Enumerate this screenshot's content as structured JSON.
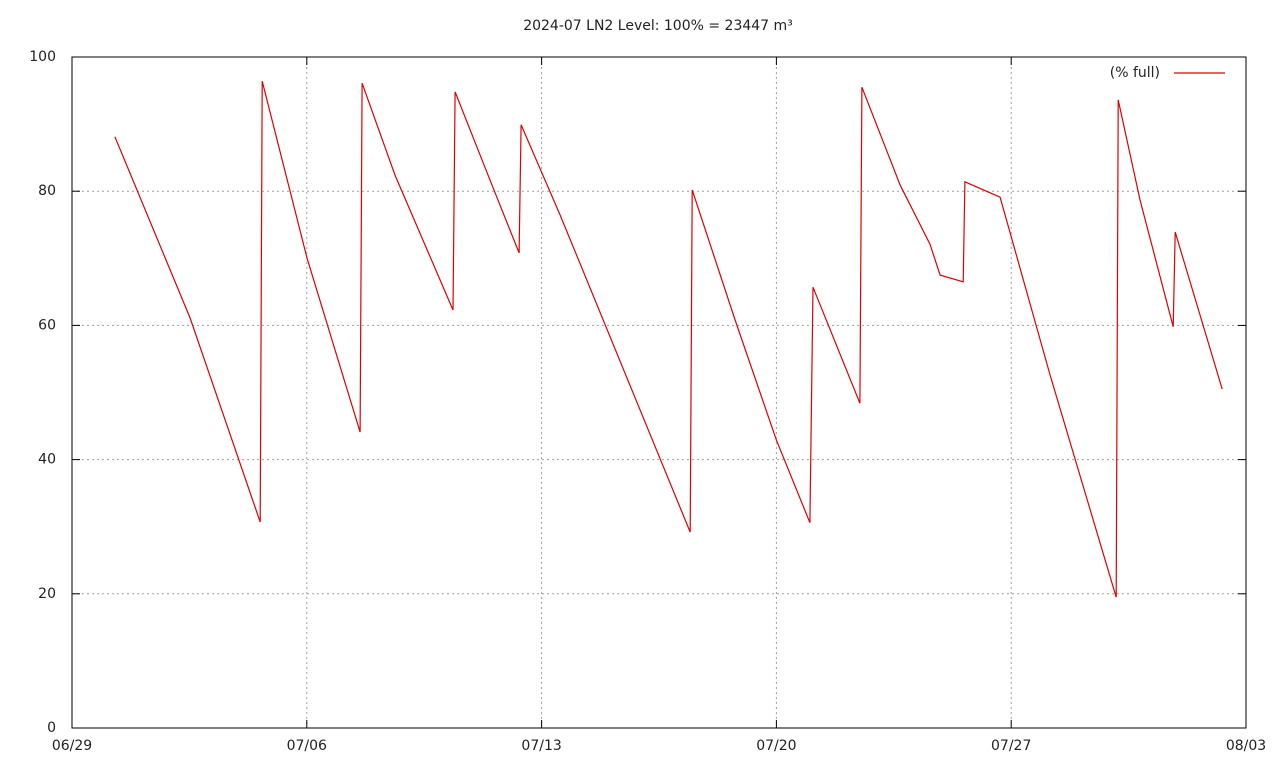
{
  "chart_data": {
    "type": "line",
    "title": "2024-07 LN2 Level: 100% = 23447 m³",
    "xlim": [
      0,
      35
    ],
    "xticks": [
      {
        "value": 0,
        "label": "06/29"
      },
      {
        "value": 7,
        "label": "07/06"
      },
      {
        "value": 14,
        "label": "07/13"
      },
      {
        "value": 21,
        "label": "07/20"
      },
      {
        "value": 28,
        "label": "07/27"
      },
      {
        "value": 35,
        "label": "08/03"
      }
    ],
    "ylim": [
      0,
      100
    ],
    "yticks": [
      0,
      20,
      40,
      60,
      80,
      100
    ],
    "grid": true,
    "legend": "top-right",
    "series": [
      {
        "name": "(% full)",
        "color": "#e00000",
        "x": [
          1.28,
          3.52,
          5.61,
          5.67,
          7.01,
          8.59,
          8.65,
          9.63,
          11.36,
          11.42,
          12.46,
          13.33,
          13.39,
          14.55,
          18.43,
          18.49,
          19.77,
          21.0,
          22.0,
          22.09,
          23.49,
          23.55,
          24.69,
          25.58,
          25.88,
          26.57,
          26.62,
          27.67,
          29.16,
          31.13,
          31.19,
          31.84,
          32.83,
          32.89,
          34.29
        ],
        "values": [
          88.1,
          61.1,
          30.7,
          96.4,
          70.0,
          44.1,
          96.1,
          82.4,
          62.3,
          94.8,
          81.7,
          70.8,
          89.9,
          76.5,
          29.2,
          80.2,
          60.8,
          42.9,
          30.6,
          65.7,
          48.4,
          95.5,
          80.9,
          72.1,
          67.5,
          66.5,
          81.4,
          79.1,
          52.6,
          19.5,
          93.6,
          78.7,
          59.8,
          73.9,
          50.5
        ]
      }
    ]
  }
}
